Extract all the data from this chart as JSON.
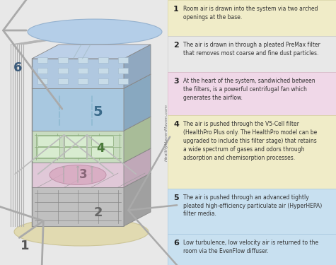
{
  "bg_color": "#e8e8e8",
  "watermark": "HealthyHavenMaven.com",
  "steps": [
    {
      "num": "1",
      "text": "Room air is drawn into the system via two arched\nopenings at the base.",
      "bg": "#f0ecc8",
      "border": "#d8d4a0"
    },
    {
      "num": "2",
      "text": "The air is drawn in through a pleated PreMax filter\nthat removes most coarse and fine dust particles.",
      "bg": "#e8e8e8",
      "border": "#cccccc"
    },
    {
      "num": "3",
      "text": "At the heart of the system, sandwiched between\nthe filters, is a powerful centrifugal fan which\ngenerates the airflow.",
      "bg": "#f0d8e8",
      "border": "#d8b8c8"
    },
    {
      "num": "4",
      "text": "The air is pushed through the V5-Cell filter\n(HealthPro Plus only. The HealthPro model can be\nupgraded to include this filter stage) that retains\na wide spectrum of gases and odors through\nadsorption and chemisorption processes.",
      "bg": "#f0ecc8",
      "border": "#d8d4a0"
    },
    {
      "num": "5",
      "text": "The air is pushed through an advanced tightly\npleated high-efficiency particulate air (HyperHEPA)\nfilter media.",
      "bg": "#c8e0f0",
      "border": "#a8c8e0"
    },
    {
      "num": "6",
      "text": "Low turbulence, low velocity air is returned to the\nroom via the EvenFlow diffuser.",
      "bg": "#c8e0f0",
      "border": "#a8c8e0"
    }
  ],
  "diagram": {
    "base_ellipse_color": "#e0d8a8",
    "base_ellipse_edge": "#c8c090",
    "top_ellipse_color": "#a8c8e8",
    "top_ellipse_edge": "#88a8c8",
    "arrow_color": "#999999",
    "arrow_color2": "#aaaaaa",
    "side_lines_color": "#aaaaaa",
    "layer2_face": "#c0c0c0",
    "layer2_side": "#a0a0a0",
    "layer2_top": "#d0d0d0",
    "layer3_face": "#e0c8d8",
    "layer3_side": "#c0a8b8",
    "layer3_top": "#e8d0e0",
    "layer4_face": "#c8dcc0",
    "layer4_side": "#a8bc98",
    "layer4_top": "#d4e4cc",
    "layer5_face": "#a8c8e0",
    "layer5_side": "#88a8c0",
    "layer5_top": "#b8d4e8",
    "layer6_face": "#b0c8e0",
    "layer6_side": "#90a8c0",
    "layer6_top": "#bcd0e8"
  }
}
